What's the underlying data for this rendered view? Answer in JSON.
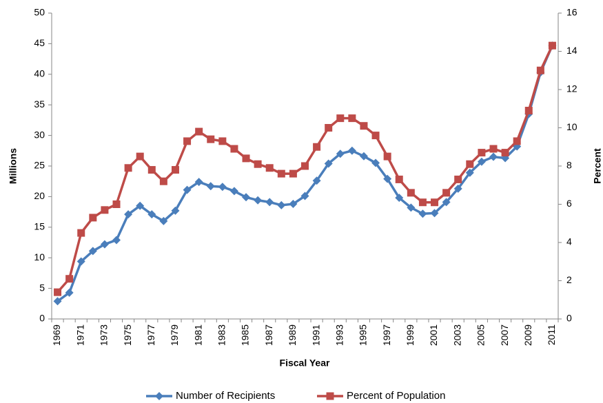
{
  "chart_data": {
    "type": "line",
    "x_label": "Fiscal Year",
    "y_label": "Millions",
    "y2_label": "Percent",
    "categories": [
      "1969",
      null,
      "1971",
      null,
      "1973",
      null,
      "1975",
      null,
      "1977",
      null,
      "1979",
      null,
      "1981",
      null,
      "1983",
      null,
      "1985",
      null,
      "1987",
      null,
      "1989",
      null,
      "1991",
      null,
      "1993",
      null,
      "1995",
      null,
      "1997",
      null,
      "1999",
      null,
      "2001",
      null,
      "2003",
      null,
      "2005",
      null,
      "2007",
      null,
      "2009",
      null,
      "2011"
    ],
    "series": [
      {
        "name": "Number of Recipients",
        "color": "#4a7ebb",
        "marker": "diamond",
        "values": [
          2.9,
          4.3,
          9.4,
          11.1,
          12.2,
          12.9,
          17.1,
          18.5,
          17.1,
          16.0,
          17.7,
          21.1,
          22.4,
          21.7,
          21.6,
          20.9,
          19.9,
          19.4,
          19.1,
          18.6,
          18.8,
          20.1,
          22.6,
          25.4,
          27.0,
          27.5,
          26.6,
          25.5,
          22.9,
          19.8,
          18.2,
          17.2,
          17.3,
          19.1,
          21.3,
          23.9,
          25.7,
          26.5,
          26.3,
          28.2,
          33.5,
          40.3,
          44.7
        ]
      },
      {
        "name": "Percent of Population",
        "color": "#be4b48",
        "marker": "square",
        "axis": "y2",
        "values": [
          1.4,
          2.1,
          4.5,
          5.3,
          5.7,
          6.0,
          7.9,
          8.5,
          7.8,
          7.2,
          7.8,
          9.3,
          9.8,
          9.4,
          9.3,
          8.9,
          8.4,
          8.1,
          7.9,
          7.6,
          7.6,
          8.0,
          9.0,
          10.0,
          10.5,
          10.5,
          10.1,
          9.6,
          8.5,
          7.3,
          6.6,
          6.1,
          6.1,
          6.6,
          7.3,
          8.1,
          8.7,
          8.9,
          8.7,
          9.3,
          10.9,
          13.0,
          14.3
        ]
      }
    ],
    "ylim": [
      0,
      50
    ],
    "yticks": [
      0,
      5,
      10,
      15,
      20,
      25,
      30,
      35,
      40,
      45,
      50
    ],
    "y2lim": [
      0,
      16
    ],
    "y2ticks": [
      0,
      2,
      4,
      6,
      8,
      10,
      12,
      14,
      16
    ],
    "grid": false,
    "legend": "bottom"
  }
}
